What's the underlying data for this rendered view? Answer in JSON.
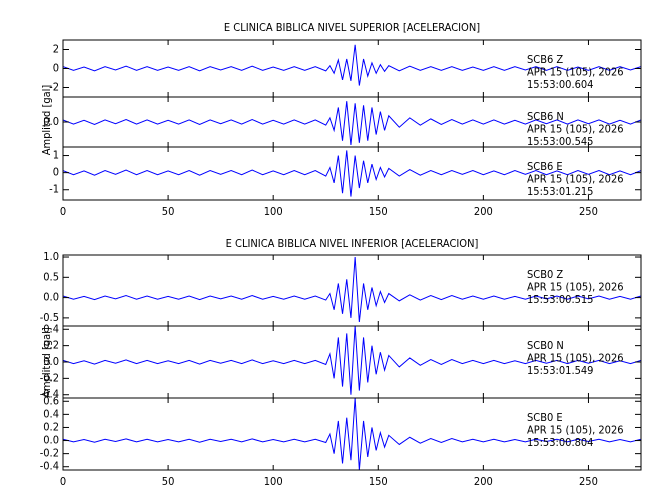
{
  "chart_data": [
    {
      "type": "line",
      "title": "E CLINICA BIBLICA NIVEL SUPERIOR [ACELERACION]",
      "ylabel": "Amplitud [gal]",
      "xlim": [
        0,
        275
      ],
      "xticks": [
        0,
        50,
        100,
        150,
        200,
        250
      ],
      "x": [
        0,
        5,
        10,
        15,
        20,
        25,
        30,
        35,
        40,
        45,
        50,
        55,
        60,
        65,
        70,
        75,
        80,
        85,
        90,
        95,
        100,
        105,
        110,
        115,
        120,
        125,
        127,
        129,
        131,
        133,
        135,
        137,
        139,
        141,
        143,
        145,
        147,
        149,
        151,
        153,
        155,
        160,
        165,
        170,
        175,
        180,
        185,
        190,
        195,
        200,
        205,
        210,
        215,
        220,
        225,
        230,
        235,
        240,
        245,
        250,
        255,
        260,
        265,
        270,
        275
      ],
      "series": [
        {
          "color": "#0000ff",
          "ylim": [
            -3,
            3
          ],
          "yticks": [
            -2,
            0,
            2
          ],
          "annotation": [
            "SCB6   Z",
            "APR 15 (105), 2026",
            "15:53:00.604"
          ],
          "values": [
            0.2,
            -0.2,
            0.15,
            -0.25,
            0.2,
            -0.15,
            0.25,
            -0.2,
            0.2,
            -0.2,
            0.15,
            -0.2,
            0.2,
            -0.25,
            0.2,
            -0.15,
            0.2,
            -0.2,
            0.25,
            -0.2,
            0.15,
            -0.2,
            0.2,
            -0.2,
            0.2,
            -0.25,
            0.3,
            -0.5,
            0.9,
            -1.2,
            1.0,
            -1.3,
            2.5,
            -1.8,
            1.0,
            -0.8,
            0.6,
            -0.5,
            0.4,
            -0.3,
            0.3,
            -0.25,
            0.25,
            -0.2,
            0.2,
            -0.2,
            0.2,
            -0.2,
            0.15,
            -0.2,
            0.2,
            -0.2,
            0.2,
            -0.15,
            0.2,
            -0.2,
            0.2,
            -0.2,
            0.15,
            -0.2,
            0.2,
            -0.2,
            0.2,
            -0.15,
            0.2
          ]
        },
        {
          "color": "#0000ff",
          "ylim": [
            -1.2,
            1.2
          ],
          "yticks": [
            {
              "value": 0,
              "label": "0.0"
            }
          ],
          "annotation": [
            "SCB6   N",
            "APR 15 (105), 2026",
            "15:53:00.545"
          ],
          "values": [
            0.1,
            -0.1,
            0.08,
            -0.12,
            0.1,
            -0.08,
            0.12,
            -0.1,
            0.1,
            -0.1,
            0.08,
            -0.1,
            0.1,
            -0.12,
            0.1,
            -0.08,
            0.1,
            -0.1,
            0.12,
            -0.1,
            0.08,
            -0.1,
            0.1,
            -0.1,
            0.1,
            -0.15,
            0.2,
            -0.4,
            0.7,
            -0.9,
            1.0,
            -1.1,
            0.9,
            -1.0,
            0.8,
            -0.9,
            0.7,
            -0.6,
            0.5,
            -0.4,
            0.3,
            -0.25,
            0.2,
            -0.15,
            0.15,
            -0.12,
            0.12,
            -0.1,
            0.1,
            -0.1,
            0.1,
            -0.1,
            0.08,
            -0.1,
            0.1,
            -0.08,
            0.1,
            -0.1,
            0.1,
            -0.08,
            0.1,
            -0.1,
            0.08,
            -0.1,
            0.1
          ]
        },
        {
          "color": "#0000ff",
          "ylim": [
            -1.6,
            1.5
          ],
          "yticks": [
            -1,
            0,
            1
          ],
          "annotation": [
            "SCB6   E",
            "APR 15 (105), 2026",
            "15:53:01.215"
          ],
          "values": [
            0.12,
            -0.12,
            0.1,
            -0.15,
            0.12,
            -0.1,
            0.15,
            -0.12,
            0.12,
            -0.12,
            0.1,
            -0.12,
            0.12,
            -0.15,
            0.12,
            -0.1,
            0.12,
            -0.12,
            0.15,
            -0.12,
            0.1,
            -0.12,
            0.12,
            -0.12,
            0.12,
            -0.2,
            0.3,
            -0.6,
            1.0,
            -1.2,
            1.3,
            -1.4,
            1.0,
            -0.9,
            0.7,
            -0.6,
            0.5,
            -0.4,
            0.3,
            -0.25,
            0.25,
            -0.2,
            0.18,
            -0.15,
            0.12,
            -0.12,
            0.12,
            -0.1,
            0.12,
            -0.12,
            0.1,
            -0.12,
            0.12,
            -0.1,
            0.12,
            -0.12,
            0.1,
            -0.12,
            0.12,
            -0.1,
            0.12,
            -0.12,
            0.1,
            -0.12,
            0.12
          ]
        }
      ]
    },
    {
      "type": "line",
      "title": "E CLINICA BIBLICA NIVEL INFERIOR [ACELERACION]",
      "ylabel": "Amplitud [gal]",
      "xlim": [
        0,
        275
      ],
      "xticks": [
        0,
        50,
        100,
        150,
        200,
        250
      ],
      "x": [
        0,
        5,
        10,
        15,
        20,
        25,
        30,
        35,
        40,
        45,
        50,
        55,
        60,
        65,
        70,
        75,
        80,
        85,
        90,
        95,
        100,
        105,
        110,
        115,
        120,
        125,
        127,
        129,
        131,
        133,
        135,
        137,
        139,
        141,
        143,
        145,
        147,
        149,
        151,
        153,
        155,
        160,
        165,
        170,
        175,
        180,
        185,
        190,
        195,
        200,
        205,
        210,
        215,
        220,
        225,
        230,
        235,
        240,
        245,
        250,
        255,
        260,
        265,
        270,
        275
      ],
      "series": [
        {
          "color": "#0000ff",
          "ylim": [
            -0.7,
            1.05
          ],
          "yticks": [
            -0.5,
            {
              "value": 0,
              "label": "0.0"
            },
            0.5,
            {
              "value": 1,
              "label": "1.0"
            }
          ],
          "annotation": [
            "SCB0   Z",
            "APR 15 (105), 2026",
            "15:53:00.515"
          ],
          "values": [
            0.04,
            -0.04,
            0.03,
            -0.05,
            0.04,
            -0.03,
            0.05,
            -0.04,
            0.04,
            -0.04,
            0.03,
            -0.04,
            0.04,
            -0.05,
            0.04,
            -0.03,
            0.04,
            -0.04,
            0.05,
            -0.04,
            0.03,
            -0.04,
            0.04,
            -0.04,
            0.04,
            -0.06,
            0.1,
            -0.3,
            0.35,
            -0.4,
            0.45,
            -0.5,
            1.0,
            -0.6,
            0.35,
            -0.3,
            0.25,
            -0.2,
            0.15,
            -0.12,
            0.1,
            -0.08,
            0.07,
            -0.06,
            0.05,
            -0.05,
            0.05,
            -0.04,
            0.04,
            -0.04,
            0.04,
            -0.04,
            0.03,
            -0.04,
            0.04,
            -0.03,
            0.04,
            -0.04,
            0.04,
            -0.03,
            0.04,
            -0.04,
            0.03,
            -0.04,
            0.04
          ]
        },
        {
          "color": "#0000ff",
          "ylim": [
            -0.44,
            0.44
          ],
          "yticks": [
            -0.4,
            -0.2,
            {
              "value": 0,
              "label": "0.0"
            },
            0.2,
            0.4
          ],
          "annotation": [
            "SCB0   N",
            "APR 15 (105), 2026",
            "15:53:01.549"
          ],
          "values": [
            0.02,
            -0.02,
            0.015,
            -0.025,
            0.02,
            -0.015,
            0.025,
            -0.02,
            0.02,
            -0.02,
            0.015,
            -0.02,
            0.02,
            -0.025,
            0.02,
            -0.015,
            0.02,
            -0.02,
            0.025,
            -0.02,
            0.015,
            -0.02,
            0.02,
            -0.02,
            0.02,
            -0.03,
            0.1,
            -0.2,
            0.3,
            -0.3,
            0.35,
            -0.4,
            0.44,
            -0.35,
            0.3,
            -0.25,
            0.2,
            -0.15,
            0.12,
            -0.1,
            0.08,
            -0.06,
            0.05,
            -0.04,
            0.03,
            -0.03,
            0.03,
            -0.02,
            0.02,
            -0.02,
            0.02,
            -0.02,
            0.015,
            -0.02,
            0.02,
            -0.015,
            0.02,
            -0.02,
            0.02,
            -0.015,
            0.02,
            -0.02,
            0.015,
            -0.02,
            0.02
          ]
        },
        {
          "color": "#0000ff",
          "ylim": [
            -0.45,
            0.65
          ],
          "yticks": [
            -0.4,
            -0.2,
            {
              "value": 0,
              "label": "0.0"
            },
            0.2,
            0.4,
            0.6
          ],
          "annotation": [
            "SCB0   E",
            "APR 15 (105), 2026",
            "15:53:00.804"
          ],
          "values": [
            0.02,
            -0.02,
            0.015,
            -0.025,
            0.02,
            -0.015,
            0.025,
            -0.02,
            0.02,
            -0.02,
            0.015,
            -0.02,
            0.02,
            -0.025,
            0.02,
            -0.015,
            0.02,
            -0.02,
            0.025,
            -0.02,
            0.015,
            -0.02,
            0.02,
            -0.02,
            0.02,
            -0.03,
            0.1,
            -0.2,
            0.3,
            -0.35,
            0.35,
            -0.3,
            0.65,
            -0.45,
            0.3,
            -0.25,
            0.2,
            -0.15,
            0.12,
            -0.1,
            0.08,
            -0.06,
            0.05,
            -0.04,
            0.03,
            -0.03,
            0.03,
            -0.02,
            0.02,
            -0.02,
            0.02,
            -0.02,
            0.015,
            -0.02,
            0.02,
            -0.015,
            0.02,
            -0.02,
            0.02,
            -0.015,
            0.02,
            -0.02,
            0.015,
            -0.02,
            0.02
          ]
        }
      ]
    }
  ]
}
